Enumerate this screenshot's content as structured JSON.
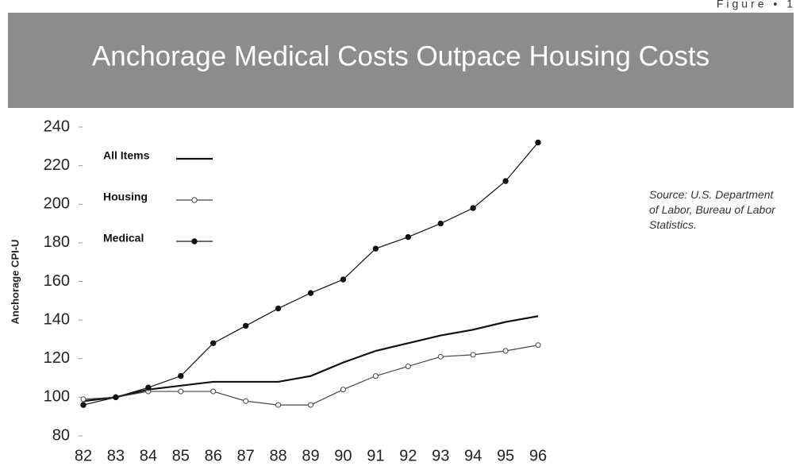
{
  "figure_label": "Figure • 1",
  "chart_data": {
    "type": "line",
    "title": "Anchorage Medical Costs Outpace Housing Costs",
    "y_label": "Anchorage CPI-U",
    "source": "Source: U.S. Department of Labor, Bureau of Labor Statistics.",
    "categories": [
      "82",
      "83",
      "84",
      "85",
      "86",
      "87",
      "88",
      "89",
      "90",
      "91",
      "92",
      "93",
      "94",
      "95",
      "96"
    ],
    "series": [
      {
        "name": "All Items",
        "color": "#111111",
        "marker": "none",
        "values": [
          98,
          100,
          104,
          106,
          108,
          108,
          108,
          111,
          118,
          124,
          128,
          132,
          135,
          139,
          142
        ]
      },
      {
        "name": "Housing",
        "color": "#444444",
        "marker": "open",
        "values": [
          99,
          100,
          103,
          103,
          103,
          98,
          96,
          96,
          104,
          111,
          116,
          121,
          122,
          124,
          127
        ]
      },
      {
        "name": "Medical",
        "color": "#111111",
        "marker": "filled",
        "values": [
          96,
          100,
          105,
          111,
          128,
          137,
          146,
          154,
          161,
          177,
          183,
          190,
          198,
          212,
          232
        ]
      }
    ],
    "ylim": [
      80,
      240
    ],
    "yticks": [
      80,
      100,
      120,
      140,
      160,
      180,
      200,
      220,
      240
    ],
    "grid": false
  }
}
